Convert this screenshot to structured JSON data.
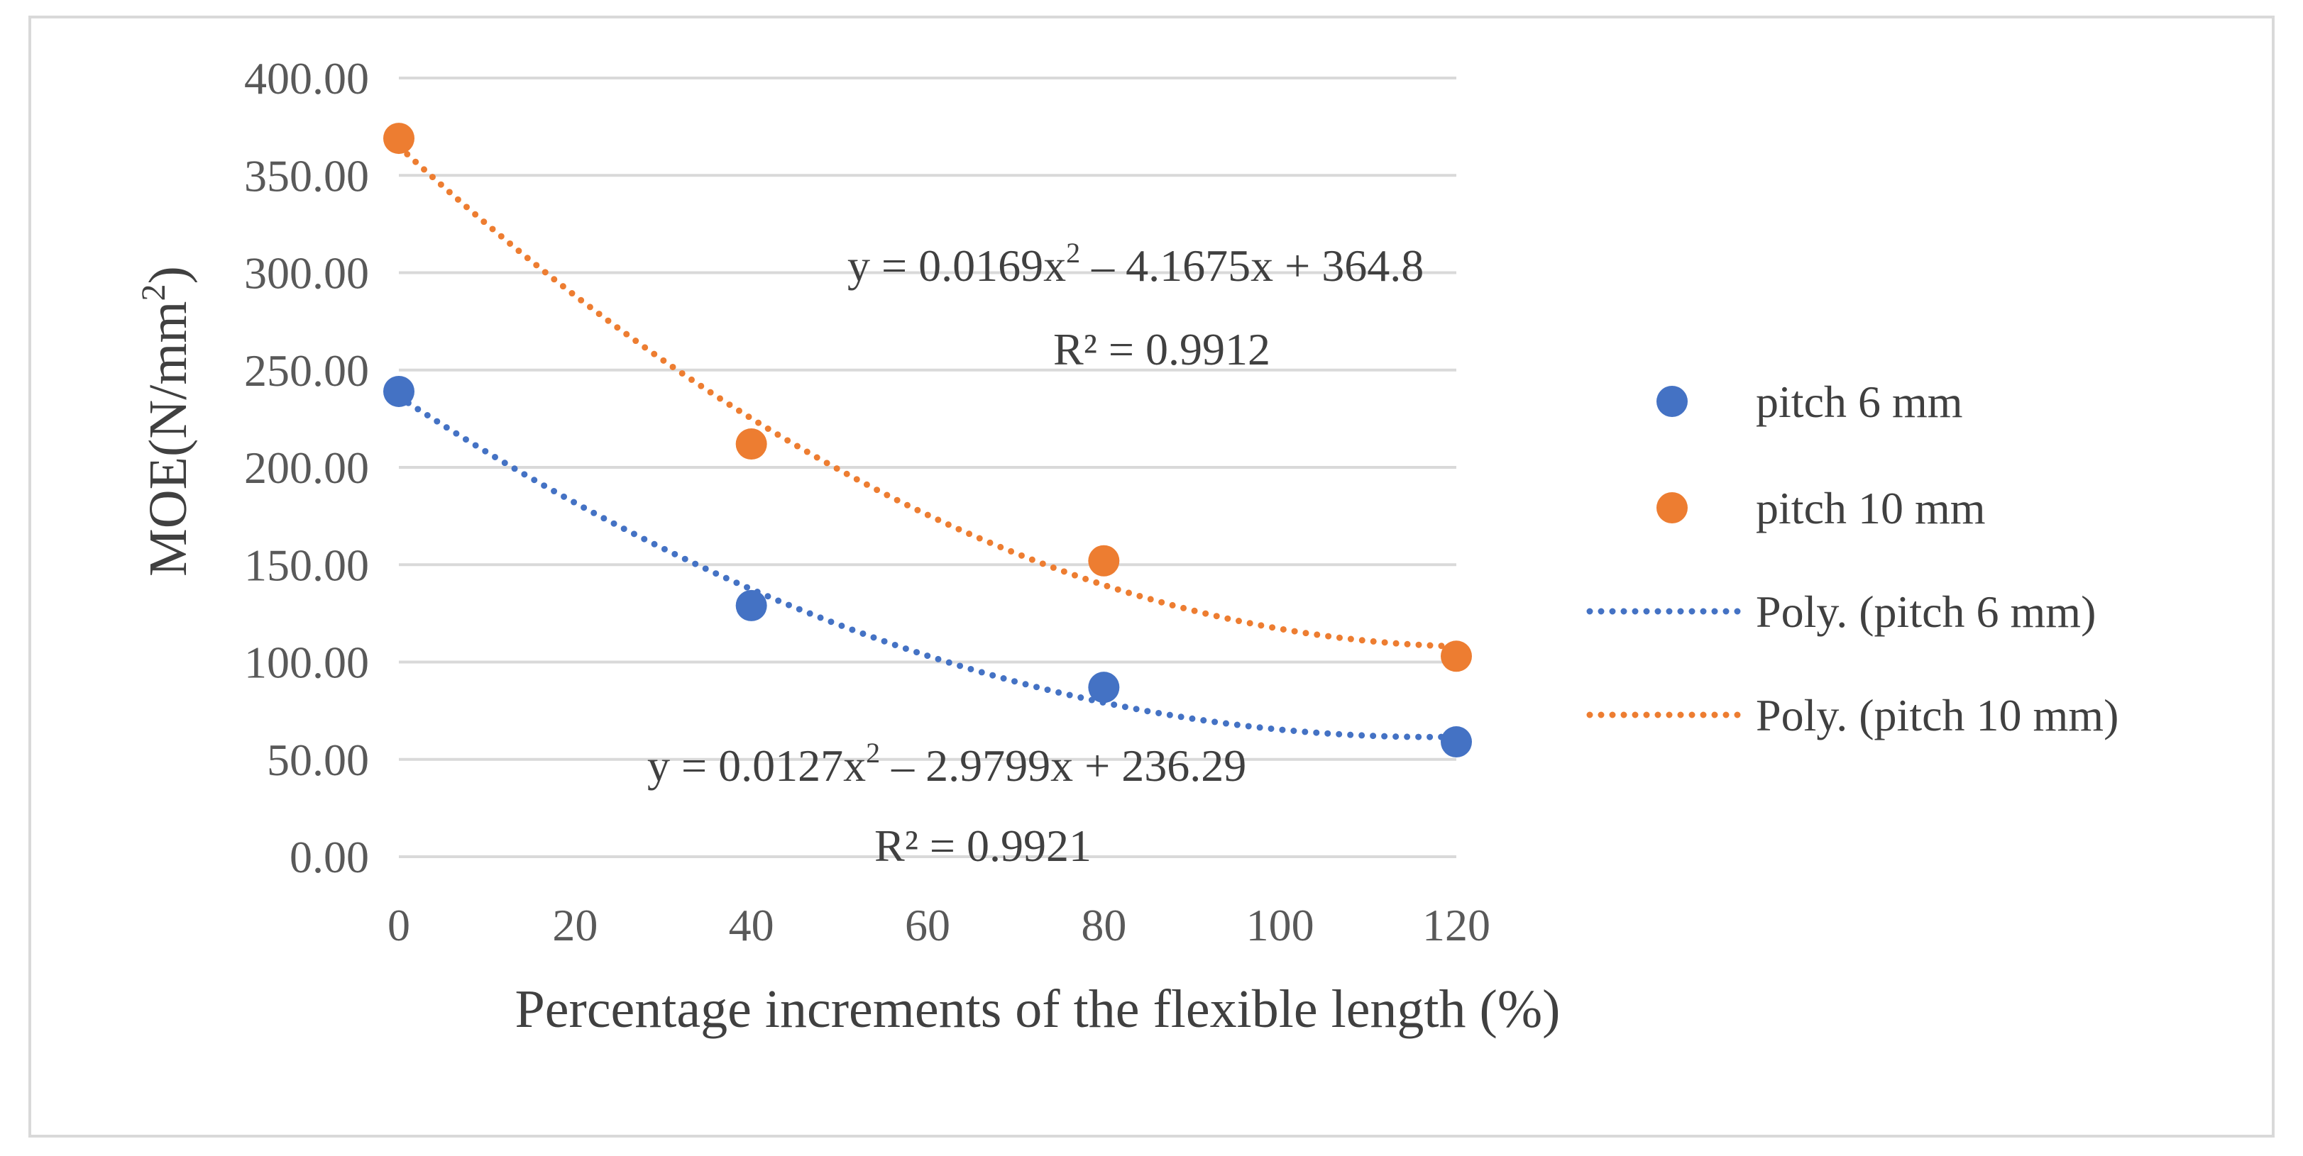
{
  "chart_data": {
    "type": "scatter",
    "title": "",
    "xlabel": "Percentage increments of the flexible length (%)",
    "ylabel_main": "MOE(N/mm",
    "ylabel_sup": "2",
    "ylabel_end": ")",
    "xlim": [
      0,
      120
    ],
    "ylim": [
      0,
      400
    ],
    "xticks": [
      0,
      20,
      40,
      60,
      80,
      100,
      120
    ],
    "yticks": [
      0,
      50,
      100,
      150,
      200,
      250,
      300,
      350,
      400
    ],
    "ytick_labels": [
      "0.00",
      "50.00",
      "100.00",
      "150.00",
      "200.00",
      "250.00",
      "300.00",
      "350.00",
      "400.00"
    ],
    "grid": true,
    "legend_position": "right",
    "series": [
      {
        "name": "pitch 6 mm",
        "color": "#4472c4",
        "x": [
          0,
          40,
          80,
          120
        ],
        "y": [
          239,
          129,
          87,
          59
        ],
        "trendline": {
          "name": "Poly. (pitch 6 mm)",
          "type": "polynomial",
          "coefficients": [
            0.0127,
            -2.9799,
            236.29
          ],
          "equation_parts": [
            "y = 0.0127x",
            "2",
            " – 2.9799x + 236.29"
          ],
          "r2_label": "R² = 0.9921"
        }
      },
      {
        "name": "pitch 10 mm",
        "color": "#ed7d31",
        "x": [
          0,
          40,
          80,
          120
        ],
        "y": [
          369,
          212,
          152,
          103
        ],
        "trendline": {
          "name": "Poly. (pitch 10 mm)",
          "type": "polynomial",
          "coefficients": [
            0.0169,
            -4.1675,
            364.8
          ],
          "equation_parts": [
            "y = 0.0169x",
            "2",
            " – 4.1675x + 364.8"
          ],
          "r2_label": "R² = 0.9912"
        }
      }
    ]
  }
}
